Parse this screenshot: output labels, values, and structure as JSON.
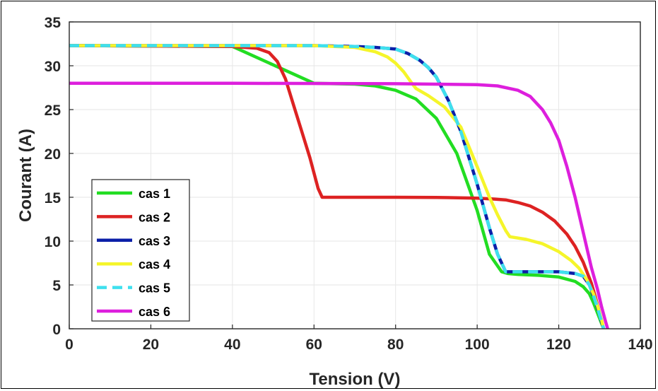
{
  "chart_data": {
    "type": "line",
    "title": "",
    "xlabel": "Tension (V)",
    "ylabel": "Courant (A)",
    "xlim": [
      0,
      140
    ],
    "ylim": [
      0,
      35
    ],
    "xticks": [
      0,
      20,
      40,
      60,
      80,
      100,
      120,
      140
    ],
    "yticks": [
      0,
      5,
      10,
      15,
      20,
      25,
      30,
      35
    ],
    "grid": true,
    "legend_position": "bottom-left",
    "series": [
      {
        "name": "cas 1",
        "color": "#22dd22",
        "dashed": false,
        "x": [
          0,
          40,
          60,
          70,
          75,
          80,
          85,
          90,
          95,
          100,
          103,
          106,
          107.5,
          110,
          115,
          120,
          124,
          126,
          127.5,
          128.5,
          129.5,
          130.5,
          131
        ],
        "y": [
          32.3,
          32.2,
          28,
          27.9,
          27.7,
          27.2,
          26.2,
          24,
          20,
          13.5,
          8.5,
          6.5,
          6.3,
          6.2,
          6.1,
          5.9,
          5.4,
          4.8,
          4,
          3,
          1.8,
          0.6,
          0
        ]
      },
      {
        "name": "cas 2",
        "color": "#dd2222",
        "dashed": false,
        "x": [
          0,
          40,
          46,
          49,
          51,
          53,
          55,
          57,
          59,
          61,
          62,
          70,
          80,
          90,
          100,
          104,
          107,
          110,
          113,
          116,
          119,
          122,
          124,
          126,
          128,
          129,
          130,
          131
        ],
        "y": [
          32.3,
          32.2,
          32,
          31.5,
          30.5,
          28.5,
          25.5,
          22.5,
          19.5,
          16,
          15,
          15,
          15,
          14.98,
          14.9,
          14.8,
          14.7,
          14.4,
          14,
          13.3,
          12.3,
          10.8,
          9.4,
          7.6,
          5.2,
          3.6,
          1.8,
          0
        ]
      },
      {
        "name": "cas 3",
        "color": "#0b1fa8",
        "dashed": false,
        "x": [
          0,
          40,
          60,
          70,
          75,
          80,
          83,
          86,
          88,
          90,
          93,
          96,
          100,
          103,
          105,
          107,
          110,
          115,
          120,
          124,
          126,
          127.5,
          128.5,
          129.5,
          130.5,
          131
        ],
        "y": [
          32.3,
          32.3,
          32.3,
          32.2,
          32.1,
          31.9,
          31.4,
          30.6,
          29.8,
          28.7,
          26,
          22.5,
          16.5,
          11.5,
          8.5,
          6.5,
          6.5,
          6.5,
          6.5,
          6.3,
          6,
          5,
          3.8,
          2.4,
          0.8,
          0
        ]
      },
      {
        "name": "cas 4",
        "color": "#f5f52a",
        "dashed": false,
        "x": [
          0,
          40,
          60,
          70,
          75,
          78,
          80,
          82,
          84,
          85,
          88,
          92,
          96,
          100,
          103,
          105,
          107,
          108,
          112,
          116,
          120,
          123,
          125,
          127,
          128.5,
          129.5,
          130.5,
          131
        ],
        "y": [
          32.3,
          32.3,
          32.3,
          32.1,
          31.6,
          31,
          30.3,
          29.3,
          28,
          27.4,
          26.6,
          25.3,
          23,
          18.5,
          15,
          13,
          11.2,
          10.5,
          10.2,
          9.7,
          8.8,
          7.8,
          6.9,
          5.5,
          4,
          2.6,
          1,
          0
        ]
      },
      {
        "name": "cas 5",
        "color": "#3ee0ee",
        "dashed": true,
        "x": [
          0,
          40,
          60,
          70,
          75,
          80,
          83,
          86,
          88,
          90,
          93,
          96,
          100,
          103,
          105,
          107,
          110,
          115,
          120,
          124,
          126,
          127.5,
          128.5,
          129.5,
          130.5,
          131
        ],
        "y": [
          32.3,
          32.3,
          32.3,
          32.2,
          32.1,
          31.9,
          31.4,
          30.6,
          29.8,
          28.7,
          26,
          22.5,
          16.5,
          11.5,
          8.5,
          6.5,
          6.5,
          6.5,
          6.5,
          6.3,
          6,
          5,
          3.8,
          2.4,
          0.8,
          0
        ]
      },
      {
        "name": "cas 6",
        "color": "#dd1fdd",
        "dashed": false,
        "x": [
          0,
          40,
          80,
          100,
          105,
          110,
          113,
          116,
          118,
          120,
          122,
          124,
          126,
          128,
          129.5,
          130.5,
          131.5,
          132
        ],
        "y": [
          28,
          28,
          27.95,
          27.85,
          27.7,
          27.2,
          26.5,
          25,
          23.5,
          21.5,
          18.5,
          15,
          11,
          7,
          4.5,
          2.5,
          0.8,
          0
        ]
      }
    ]
  }
}
